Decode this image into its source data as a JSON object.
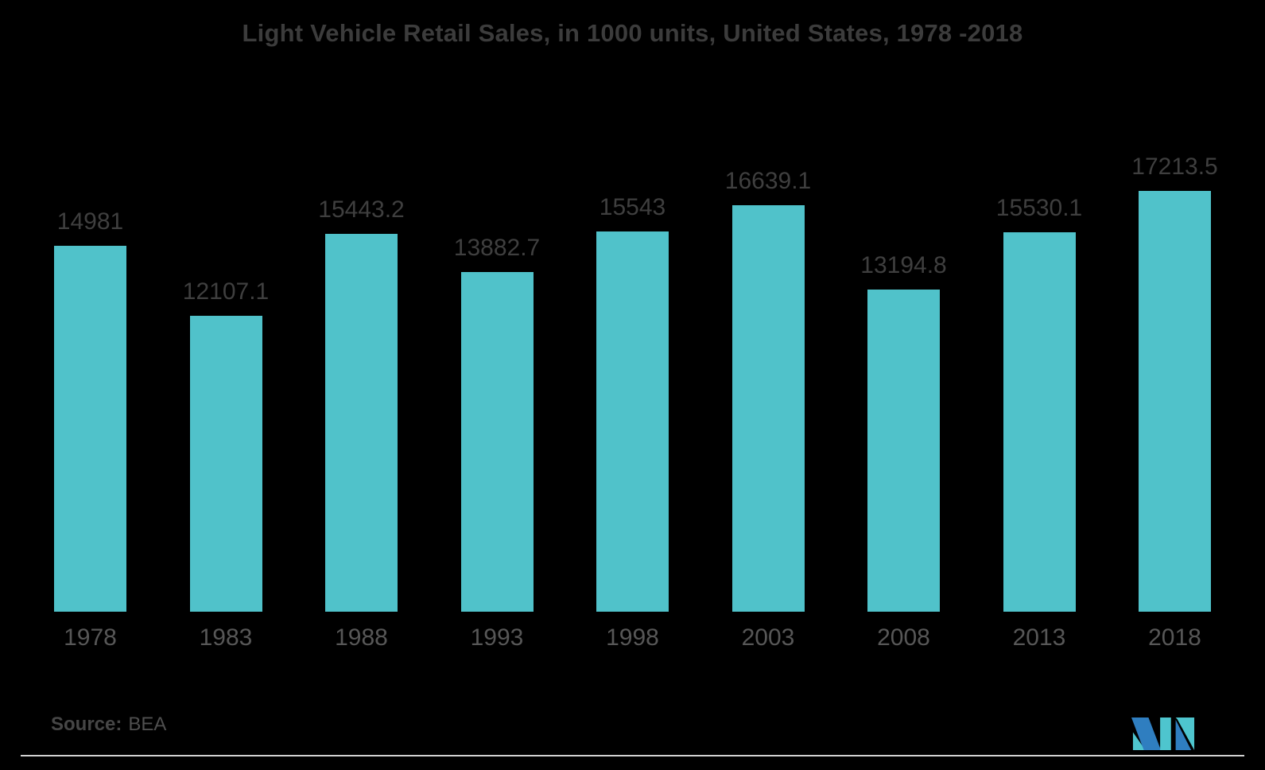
{
  "title": "Light Vehicle Retail Sales, in 1000 units, United States, 1978 -2018",
  "source": {
    "label": "Source:",
    "value": "BEA"
  },
  "colors": {
    "background": "#000000",
    "bar": "#50c2ca",
    "title_text": "#3c3c3c",
    "value_label_text": "#3f3f3f",
    "x_axis_label_text": "#575757",
    "axis_line": "#d2d2d2",
    "source_text": "#4f4f4f",
    "logo_teal": "#4ec5ce",
    "logo_blue": "#2f7ec0"
  },
  "logo": {
    "name": "mordor-intelligence-m-logo"
  },
  "chart_data": {
    "type": "bar",
    "title": "Light Vehicle Retail Sales, in 1000 units, United States, 1978 -2018",
    "categories": [
      "1978",
      "1983",
      "1988",
      "1993",
      "1998",
      "2003",
      "2008",
      "2013",
      "2018"
    ],
    "values": [
      14981,
      12107.1,
      15443.2,
      13882.7,
      15543,
      16639.1,
      13194.8,
      15530.1,
      17213.5
    ],
    "value_labels": [
      "14981",
      "12107.1",
      "15443.2",
      "13882.7",
      "15543",
      "16639.1",
      "13194.8",
      "15530.1",
      "17213.5"
    ],
    "xlabel": "",
    "ylabel": "",
    "ylim": [
      0,
      17213.5
    ],
    "grid": false,
    "legend": false,
    "y_axis_visible": false,
    "data_labels_position": "above bars"
  }
}
